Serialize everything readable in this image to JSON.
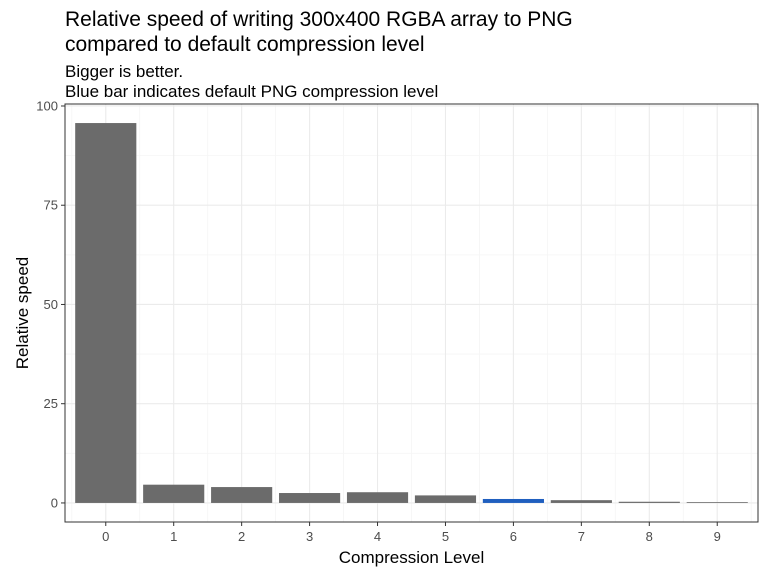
{
  "chart_data": {
    "type": "bar",
    "title_lines": [
      "Relative speed of writing 300x400 RGBA array to PNG",
      "compared to default compression level"
    ],
    "subtitle_lines": [
      "Bigger is better.",
      "Blue bar indicates default PNG compression level"
    ],
    "xlabel": "Compression Level",
    "ylabel": "Relative speed",
    "categories": [
      "0",
      "1",
      "2",
      "3",
      "4",
      "5",
      "6",
      "7",
      "8",
      "9"
    ],
    "values": [
      95.7,
      4.6,
      4.0,
      2.5,
      2.7,
      1.9,
      1.0,
      0.7,
      0.3,
      0.2
    ],
    "highlight_category": "6",
    "ylim": [
      -4.8,
      100.5
    ],
    "yticks": [
      0,
      25,
      50,
      75,
      100
    ],
    "yticks_minor": [
      12.5,
      37.5,
      62.5,
      87.5
    ],
    "grid": true,
    "colors": {
      "bar": "#6b6b6b",
      "highlight": "#1f5fbf",
      "grid_major": "#ebebeb",
      "grid_minor": "#f5f5f5",
      "panel_border": "#333333",
      "tick_label": "#4d4d4d"
    }
  }
}
